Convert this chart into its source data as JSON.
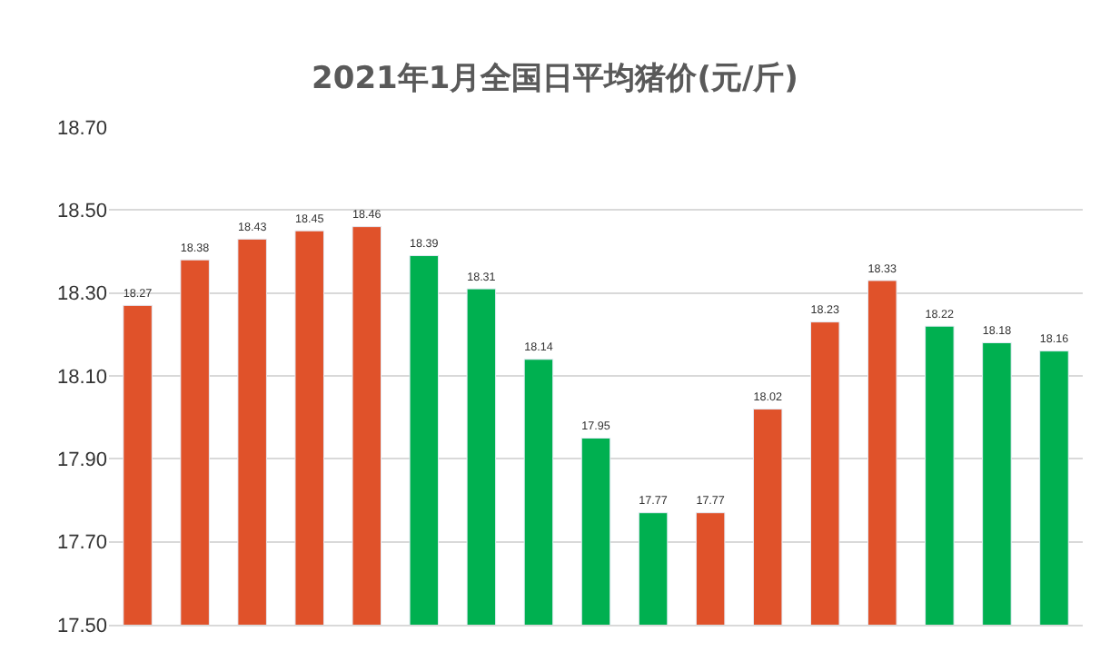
{
  "chart_data": {
    "type": "bar",
    "title": "2021年1月全国日平均猪价(元/斤)",
    "categories": [
      null,
      null,
      null,
      null,
      null,
      null,
      null,
      null,
      null,
      null,
      null,
      null,
      null,
      null,
      null,
      null,
      null
    ],
    "values": [
      18.27,
      18.38,
      18.43,
      18.45,
      18.46,
      18.39,
      18.31,
      18.14,
      17.95,
      17.77,
      17.77,
      18.02,
      18.23,
      18.33,
      18.22,
      18.18,
      18.16
    ],
    "colors": [
      "#e0522a",
      "#e0522a",
      "#e0522a",
      "#e0522a",
      "#e0522a",
      "#00b050",
      "#00b050",
      "#00b050",
      "#00b050",
      "#00b050",
      "#e0522a",
      "#e0522a",
      "#e0522a",
      "#e0522a",
      "#00b050",
      "#00b050",
      "#00b050"
    ],
    "ylim": [
      17.5,
      18.7
    ],
    "yticks": [
      {
        "value": 17.5,
        "label": "17.50"
      },
      {
        "value": 17.7,
        "label": "17.70"
      },
      {
        "value": 17.9,
        "label": "17.90"
      },
      {
        "value": 18.1,
        "label": "18.10"
      },
      {
        "value": 18.3,
        "label": "18.30"
      },
      {
        "value": 18.5,
        "label": "18.50"
      },
      {
        "value": 18.7,
        "label": "18.70"
      }
    ],
    "grid": "y",
    "data_labels": true
  }
}
